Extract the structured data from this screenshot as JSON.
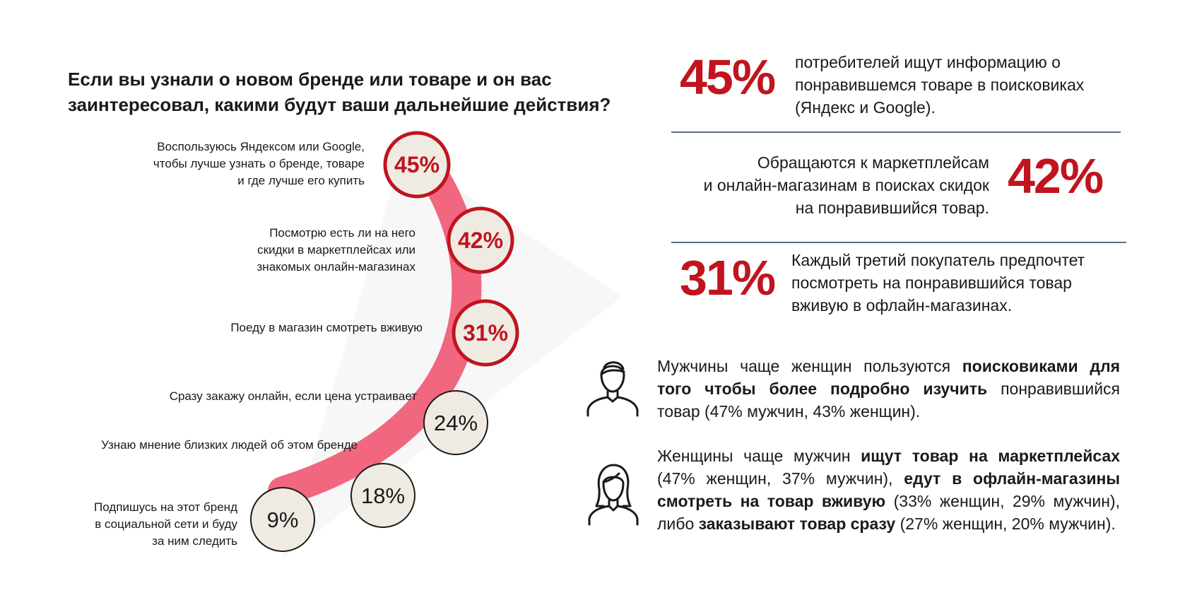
{
  "question": {
    "line1": "Если вы узнали о новом бренде или товаре и он вас",
    "line2": "заинтересовал, какими будут ваши дальнейшие действия?"
  },
  "chart_data": {
    "type": "bar",
    "title": "Если вы узнали о новом бренде или товаре и он вас заинтересовал, какими будут ваши дальнейшие действия?",
    "unit": "%",
    "categories": [
      "Воспользуюсь Яндексом или Google, чтобы лучше узнать о бренде, товаре и где лучше его купить",
      "Посмотрю есть ли на него скидки в маркетплейсах или знакомых онлайн-магазинах",
      "Поеду в магазин смотреть вживую",
      "Сразу закажу онлайн, если цена устраивает",
      "Узнаю мнение близких людей об этом бренде",
      "Подпишусь на этот бренд в социальной сети и буду за ним следить"
    ],
    "values": [
      45,
      42,
      31,
      24,
      18,
      9
    ],
    "value_labels": [
      "45%",
      "42%",
      "31%",
      "24%",
      "18%",
      "9%"
    ],
    "highlighted": [
      true,
      true,
      true,
      false,
      false,
      false
    ],
    "colors": {
      "accent": "#c0141f",
      "arc": "#f0677f",
      "fill": "#efebe3"
    }
  },
  "options": [
    {
      "lines": [
        "Воспользуюсь Яндексом или Google,",
        "чтобы лучше узнать о бренде, товаре",
        "и где лучше его купить"
      ]
    },
    {
      "lines": [
        "Посмотрю есть ли на него",
        "скидки в маркетплейсах или",
        "знакомых онлайн-магазинах"
      ]
    },
    {
      "lines": [
        "Поеду в магазин смотреть вживую"
      ]
    },
    {
      "lines": [
        "Сразу закажу онлайн, если цена устраивает"
      ]
    },
    {
      "lines": [
        "Узнаю мнение близких людей об этом бренде"
      ]
    },
    {
      "lines": [
        "Подпишусь на этот бренд",
        "в социальной сети и буду",
        "за ним следить"
      ]
    }
  ],
  "stats": [
    {
      "pct": "45%",
      "lines": [
        "потребителей ищут информацию о",
        "понравившемся товаре в поисковиках",
        "(Яндекс и Google)."
      ]
    },
    {
      "pct": "42%",
      "lines": [
        "Обращаются к маркетплейсам",
        "и онлайн-магазинам в поисках скидок",
        "на понравившийся товар."
      ]
    },
    {
      "pct": "31%",
      "lines": [
        "Каждый третий покупатель предпочтет",
        "посмотреть на понравившийся товар",
        "вживую в офлайн-магазинах."
      ]
    }
  ],
  "men": {
    "t1": "Мужчины чаще женщин пользуются ",
    "b1": "поисковиками для того чтобы более подробно изучить",
    "t2": " понравившийся товар (47% мужчин, 43% женщин)."
  },
  "women": {
    "t1": "Женщины чаще мужчин ",
    "b1": "ищут товар на маркетплейсах",
    "t2": " (47% женщин, 37% мужчин), ",
    "b2": "едут в офлайн-магазины смотреть на товар вживую",
    "t3": " (33% женщин, 29% мужчин), либо ",
    "b3": "заказывают товар сразу",
    "t4": " (27% женщин, 20% мужчин)."
  },
  "icons": {
    "man": "man-outline-icon",
    "woman": "woman-outline-icon"
  }
}
